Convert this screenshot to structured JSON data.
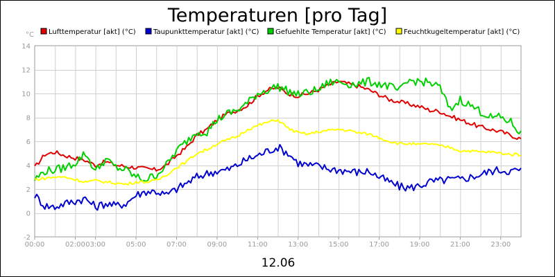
{
  "chart_data": {
    "type": "line",
    "title": "Temperaturen [pro Tag]",
    "ylabel": "°C",
    "xlabel": "12.06",
    "ylim": [
      -2,
      14
    ],
    "xlim": [
      0,
      24
    ],
    "yticks": [
      -2,
      0,
      2,
      4,
      6,
      8,
      10,
      12,
      14
    ],
    "xticks": [
      "00:00",
      "02:00",
      "03:00",
      "05:00",
      "07:00",
      "09:00",
      "11:00",
      "13:00",
      "15:00",
      "17:00",
      "19:00",
      "21:00",
      "23:00"
    ],
    "grid": true,
    "legend_position": "top",
    "series": [
      {
        "name": "Lufttemperatur [akt] (°C)",
        "color": "#e00000",
        "points": [
          [
            0,
            3.8
          ],
          [
            0.5,
            4.9
          ],
          [
            1.0,
            5.1
          ],
          [
            1.5,
            4.8
          ],
          [
            2.0,
            4.6
          ],
          [
            2.5,
            4.4
          ],
          [
            3.0,
            4.0
          ],
          [
            3.5,
            4.3
          ],
          [
            4.0,
            4.0
          ],
          [
            4.5,
            3.9
          ],
          [
            5.0,
            3.8
          ],
          [
            5.5,
            3.7
          ],
          [
            6.0,
            3.6
          ],
          [
            6.5,
            4.0
          ],
          [
            7.0,
            4.8
          ],
          [
            7.5,
            5.5
          ],
          [
            8.0,
            6.5
          ],
          [
            8.5,
            7.0
          ],
          [
            9.0,
            7.8
          ],
          [
            9.5,
            8.3
          ],
          [
            10.0,
            8.6
          ],
          [
            10.5,
            9.0
          ],
          [
            11.0,
            9.8
          ],
          [
            11.5,
            10.3
          ],
          [
            12.0,
            10.5
          ],
          [
            12.5,
            10.0
          ],
          [
            13.0,
            9.8
          ],
          [
            13.5,
            10.0
          ],
          [
            14.0,
            10.3
          ],
          [
            14.5,
            10.7
          ],
          [
            15.0,
            11.0
          ],
          [
            15.5,
            10.8
          ],
          [
            16.0,
            10.6
          ],
          [
            16.5,
            10.3
          ],
          [
            17.0,
            9.9
          ],
          [
            17.5,
            9.5
          ],
          [
            18.0,
            9.3
          ],
          [
            18.5,
            9.1
          ],
          [
            19.0,
            8.9
          ],
          [
            19.5,
            8.6
          ],
          [
            20.0,
            8.5
          ],
          [
            20.5,
            8.1
          ],
          [
            21.0,
            7.8
          ],
          [
            21.5,
            7.5
          ],
          [
            22.0,
            7.2
          ],
          [
            22.5,
            7.0
          ],
          [
            23.0,
            6.8
          ],
          [
            23.5,
            6.5
          ],
          [
            24.0,
            6.2
          ]
        ]
      },
      {
        "name": "Taupunkttemperatur [akt] (°C)",
        "color": "#0000d0",
        "points": [
          [
            0,
            1.5
          ],
          [
            0.5,
            0.6
          ],
          [
            1.0,
            0.5
          ],
          [
            1.5,
            0.8
          ],
          [
            2.0,
            1.0
          ],
          [
            2.5,
            1.2
          ],
          [
            3.0,
            0.5
          ],
          [
            3.5,
            0.8
          ],
          [
            4.0,
            0.6
          ],
          [
            4.5,
            0.8
          ],
          [
            5.0,
            1.5
          ],
          [
            5.5,
            1.8
          ],
          [
            6.0,
            1.8
          ],
          [
            6.5,
            1.5
          ],
          [
            7.0,
            2.0
          ],
          [
            7.5,
            2.5
          ],
          [
            8.0,
            3.0
          ],
          [
            8.5,
            3.3
          ],
          [
            9.0,
            3.5
          ],
          [
            9.5,
            3.6
          ],
          [
            10.0,
            4.0
          ],
          [
            10.5,
            4.5
          ],
          [
            11.0,
            4.8
          ],
          [
            11.5,
            5.2
          ],
          [
            12.0,
            5.5
          ],
          [
            12.5,
            5.0
          ],
          [
            13.0,
            4.2
          ],
          [
            13.5,
            4.0
          ],
          [
            14.0,
            3.9
          ],
          [
            14.5,
            3.7
          ],
          [
            15.0,
            3.6
          ],
          [
            15.5,
            3.5
          ],
          [
            16.0,
            3.4
          ],
          [
            16.5,
            3.5
          ],
          [
            17.0,
            3.0
          ],
          [
            17.5,
            2.6
          ],
          [
            18.0,
            2.2
          ],
          [
            18.5,
            2.1
          ],
          [
            19.0,
            2.3
          ],
          [
            19.5,
            2.6
          ],
          [
            20.0,
            2.7
          ],
          [
            20.5,
            2.8
          ],
          [
            21.0,
            2.8
          ],
          [
            21.5,
            3.0
          ],
          [
            22.0,
            3.2
          ],
          [
            22.5,
            3.5
          ],
          [
            23.0,
            3.6
          ],
          [
            23.5,
            3.5
          ],
          [
            24.0,
            3.6
          ]
        ]
      },
      {
        "name": "Gefuehlte Temperatur [akt] (°C)",
        "color": "#00d000",
        "points": [
          [
            0,
            2.8
          ],
          [
            0.5,
            3.5
          ],
          [
            1.0,
            3.6
          ],
          [
            1.5,
            3.8
          ],
          [
            2.0,
            4.2
          ],
          [
            2.5,
            5.0
          ],
          [
            3.0,
            3.5
          ],
          [
            3.5,
            4.5
          ],
          [
            4.0,
            3.8
          ],
          [
            4.5,
            3.6
          ],
          [
            5.0,
            3.0
          ],
          [
            5.5,
            2.8
          ],
          [
            6.0,
            3.2
          ],
          [
            6.5,
            4.0
          ],
          [
            7.0,
            5.2
          ],
          [
            7.5,
            6.0
          ],
          [
            8.0,
            6.8
          ],
          [
            8.5,
            6.8
          ],
          [
            9.0,
            7.8
          ],
          [
            9.5,
            8.3
          ],
          [
            10.0,
            8.6
          ],
          [
            10.5,
            9.2
          ],
          [
            11.0,
            10.0
          ],
          [
            11.5,
            10.3
          ],
          [
            12.0,
            10.6
          ],
          [
            12.5,
            10.2
          ],
          [
            13.0,
            9.9
          ],
          [
            13.5,
            10.1
          ],
          [
            14.0,
            10.3
          ],
          [
            14.5,
            10.9
          ],
          [
            15.0,
            11.0
          ],
          [
            15.5,
            10.8
          ],
          [
            16.0,
            10.8
          ],
          [
            16.5,
            11.0
          ],
          [
            17.0,
            10.8
          ],
          [
            17.5,
            10.6
          ],
          [
            18.0,
            10.2
          ],
          [
            18.5,
            11.1
          ],
          [
            19.0,
            11.0
          ],
          [
            19.5,
            10.9
          ],
          [
            20.0,
            10.5
          ],
          [
            20.5,
            8.6
          ],
          [
            21.0,
            9.5
          ],
          [
            21.5,
            9.0
          ],
          [
            22.0,
            8.5
          ],
          [
            22.5,
            8.0
          ],
          [
            23.0,
            8.0
          ],
          [
            23.5,
            7.6
          ],
          [
            24.0,
            6.6
          ]
        ]
      },
      {
        "name": "Feuchtkugeltemperatur [akt] (°C)",
        "color": "#ffff00",
        "points": [
          [
            0,
            2.8
          ],
          [
            0.5,
            2.9
          ],
          [
            1.0,
            3.0
          ],
          [
            1.5,
            3.0
          ],
          [
            2.0,
            2.8
          ],
          [
            2.5,
            2.6
          ],
          [
            3.0,
            2.7
          ],
          [
            3.5,
            2.6
          ],
          [
            4.0,
            2.5
          ],
          [
            4.5,
            2.4
          ],
          [
            5.0,
            2.6
          ],
          [
            5.5,
            2.6
          ],
          [
            6.0,
            2.7
          ],
          [
            6.5,
            3.2
          ],
          [
            7.0,
            3.8
          ],
          [
            7.5,
            4.3
          ],
          [
            8.0,
            5.0
          ],
          [
            8.5,
            5.3
          ],
          [
            9.0,
            5.8
          ],
          [
            9.5,
            6.1
          ],
          [
            10.0,
            6.4
          ],
          [
            10.5,
            7.0
          ],
          [
            11.0,
            7.3
          ],
          [
            11.5,
            7.6
          ],
          [
            12.0,
            7.8
          ],
          [
            12.5,
            7.1
          ],
          [
            13.0,
            6.7
          ],
          [
            13.5,
            6.6
          ],
          [
            14.0,
            6.8
          ],
          [
            14.5,
            6.9
          ],
          [
            15.0,
            7.0
          ],
          [
            15.5,
            6.9
          ],
          [
            16.0,
            6.7
          ],
          [
            16.5,
            6.6
          ],
          [
            17.0,
            6.3
          ],
          [
            17.5,
            6.0
          ],
          [
            18.0,
            5.8
          ],
          [
            18.5,
            5.8
          ],
          [
            19.0,
            5.7
          ],
          [
            19.5,
            5.8
          ],
          [
            20.0,
            5.6
          ],
          [
            20.5,
            5.5
          ],
          [
            21.0,
            5.2
          ],
          [
            21.5,
            5.2
          ],
          [
            22.0,
            5.1
          ],
          [
            22.5,
            5.1
          ],
          [
            23.0,
            5.0
          ],
          [
            23.5,
            4.9
          ],
          [
            24.0,
            4.9
          ]
        ]
      }
    ]
  }
}
